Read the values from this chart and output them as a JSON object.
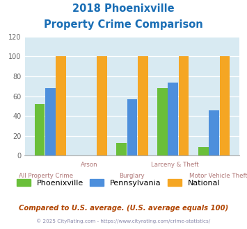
{
  "title_line1": "2018 Phoenixville",
  "title_line2": "Property Crime Comparison",
  "categories": [
    "All Property Crime",
    "Arson",
    "Burglary",
    "Larceny & Theft",
    "Motor Vehicle Theft"
  ],
  "cat_row": [
    1,
    0,
    1,
    0,
    1
  ],
  "phoenixville": [
    52,
    0,
    13,
    68,
    9
  ],
  "pennsylvania": [
    68,
    0,
    57,
    74,
    46
  ],
  "national": [
    100,
    100,
    100,
    100,
    100
  ],
  "color_phx": "#6abf3a",
  "color_pa": "#4d8fdc",
  "color_nat": "#f5a623",
  "ylim": [
    0,
    120
  ],
  "yticks": [
    0,
    20,
    40,
    60,
    80,
    100,
    120
  ],
  "bg_color": "#d8eaf2",
  "title_color": "#1a6eb5",
  "xlabel_color": "#b07878",
  "legend_labels": [
    "Phoenixville",
    "Pennsylvania",
    "National"
  ],
  "footer_text": "Compared to U.S. average. (U.S. average equals 100)",
  "copyright_text": "© 2025 CityRating.com - https://www.cityrating.com/crime-statistics/",
  "footer_color": "#b04400",
  "copyright_color": "#8888aa",
  "bar_width": 0.25
}
